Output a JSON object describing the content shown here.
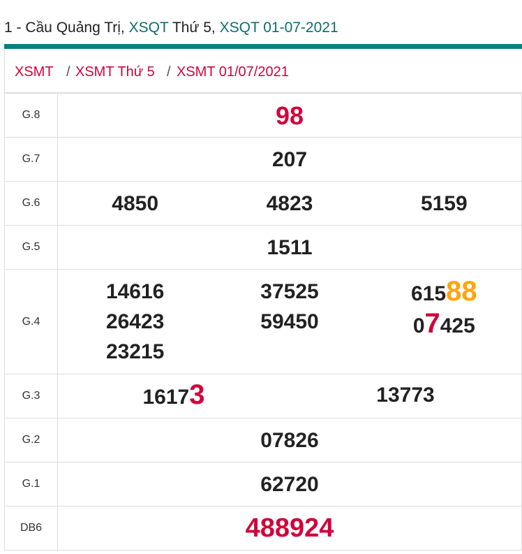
{
  "title": {
    "prefix": "1 - Cầu Quảng Trị, ",
    "link1": "XSQT",
    "mid": " Thứ 5, ",
    "link2": "XSQT 01-07-2021"
  },
  "breadcrumb": [
    "XSMT",
    "XSMT Thứ 5",
    "XSMT 01/07/2021"
  ],
  "breadcrumb_sep": "/",
  "colors": {
    "accent": "#0a8080",
    "red": "#d0043c",
    "orange": "#ffa500"
  },
  "results": {
    "g8": {
      "label": "G.8",
      "value": "98"
    },
    "g7": {
      "label": "G.7",
      "value": "207"
    },
    "g6": {
      "label": "G.6",
      "values": [
        "4850",
        "4823",
        "5159"
      ]
    },
    "g5": {
      "label": "G.5",
      "value": "1511"
    },
    "g4": {
      "label": "G.4",
      "col1": [
        "14616",
        "26423",
        "23215"
      ],
      "col2": [
        "37525",
        "59450"
      ],
      "col3": [
        {
          "pre": "615",
          "hl": "88",
          "post": ""
        },
        {
          "pre": "0",
          "hl": "7",
          "post": "425"
        }
      ]
    },
    "g3": {
      "label": "G.3",
      "values": [
        {
          "pre": "1617",
          "hl": "3"
        },
        {
          "pre": "13773",
          "hl": ""
        }
      ]
    },
    "g2": {
      "label": "G.2",
      "value": "07826"
    },
    "g1": {
      "label": "G.1",
      "value": "62720"
    },
    "db": {
      "label": "DB6",
      "value": "488924"
    }
  }
}
